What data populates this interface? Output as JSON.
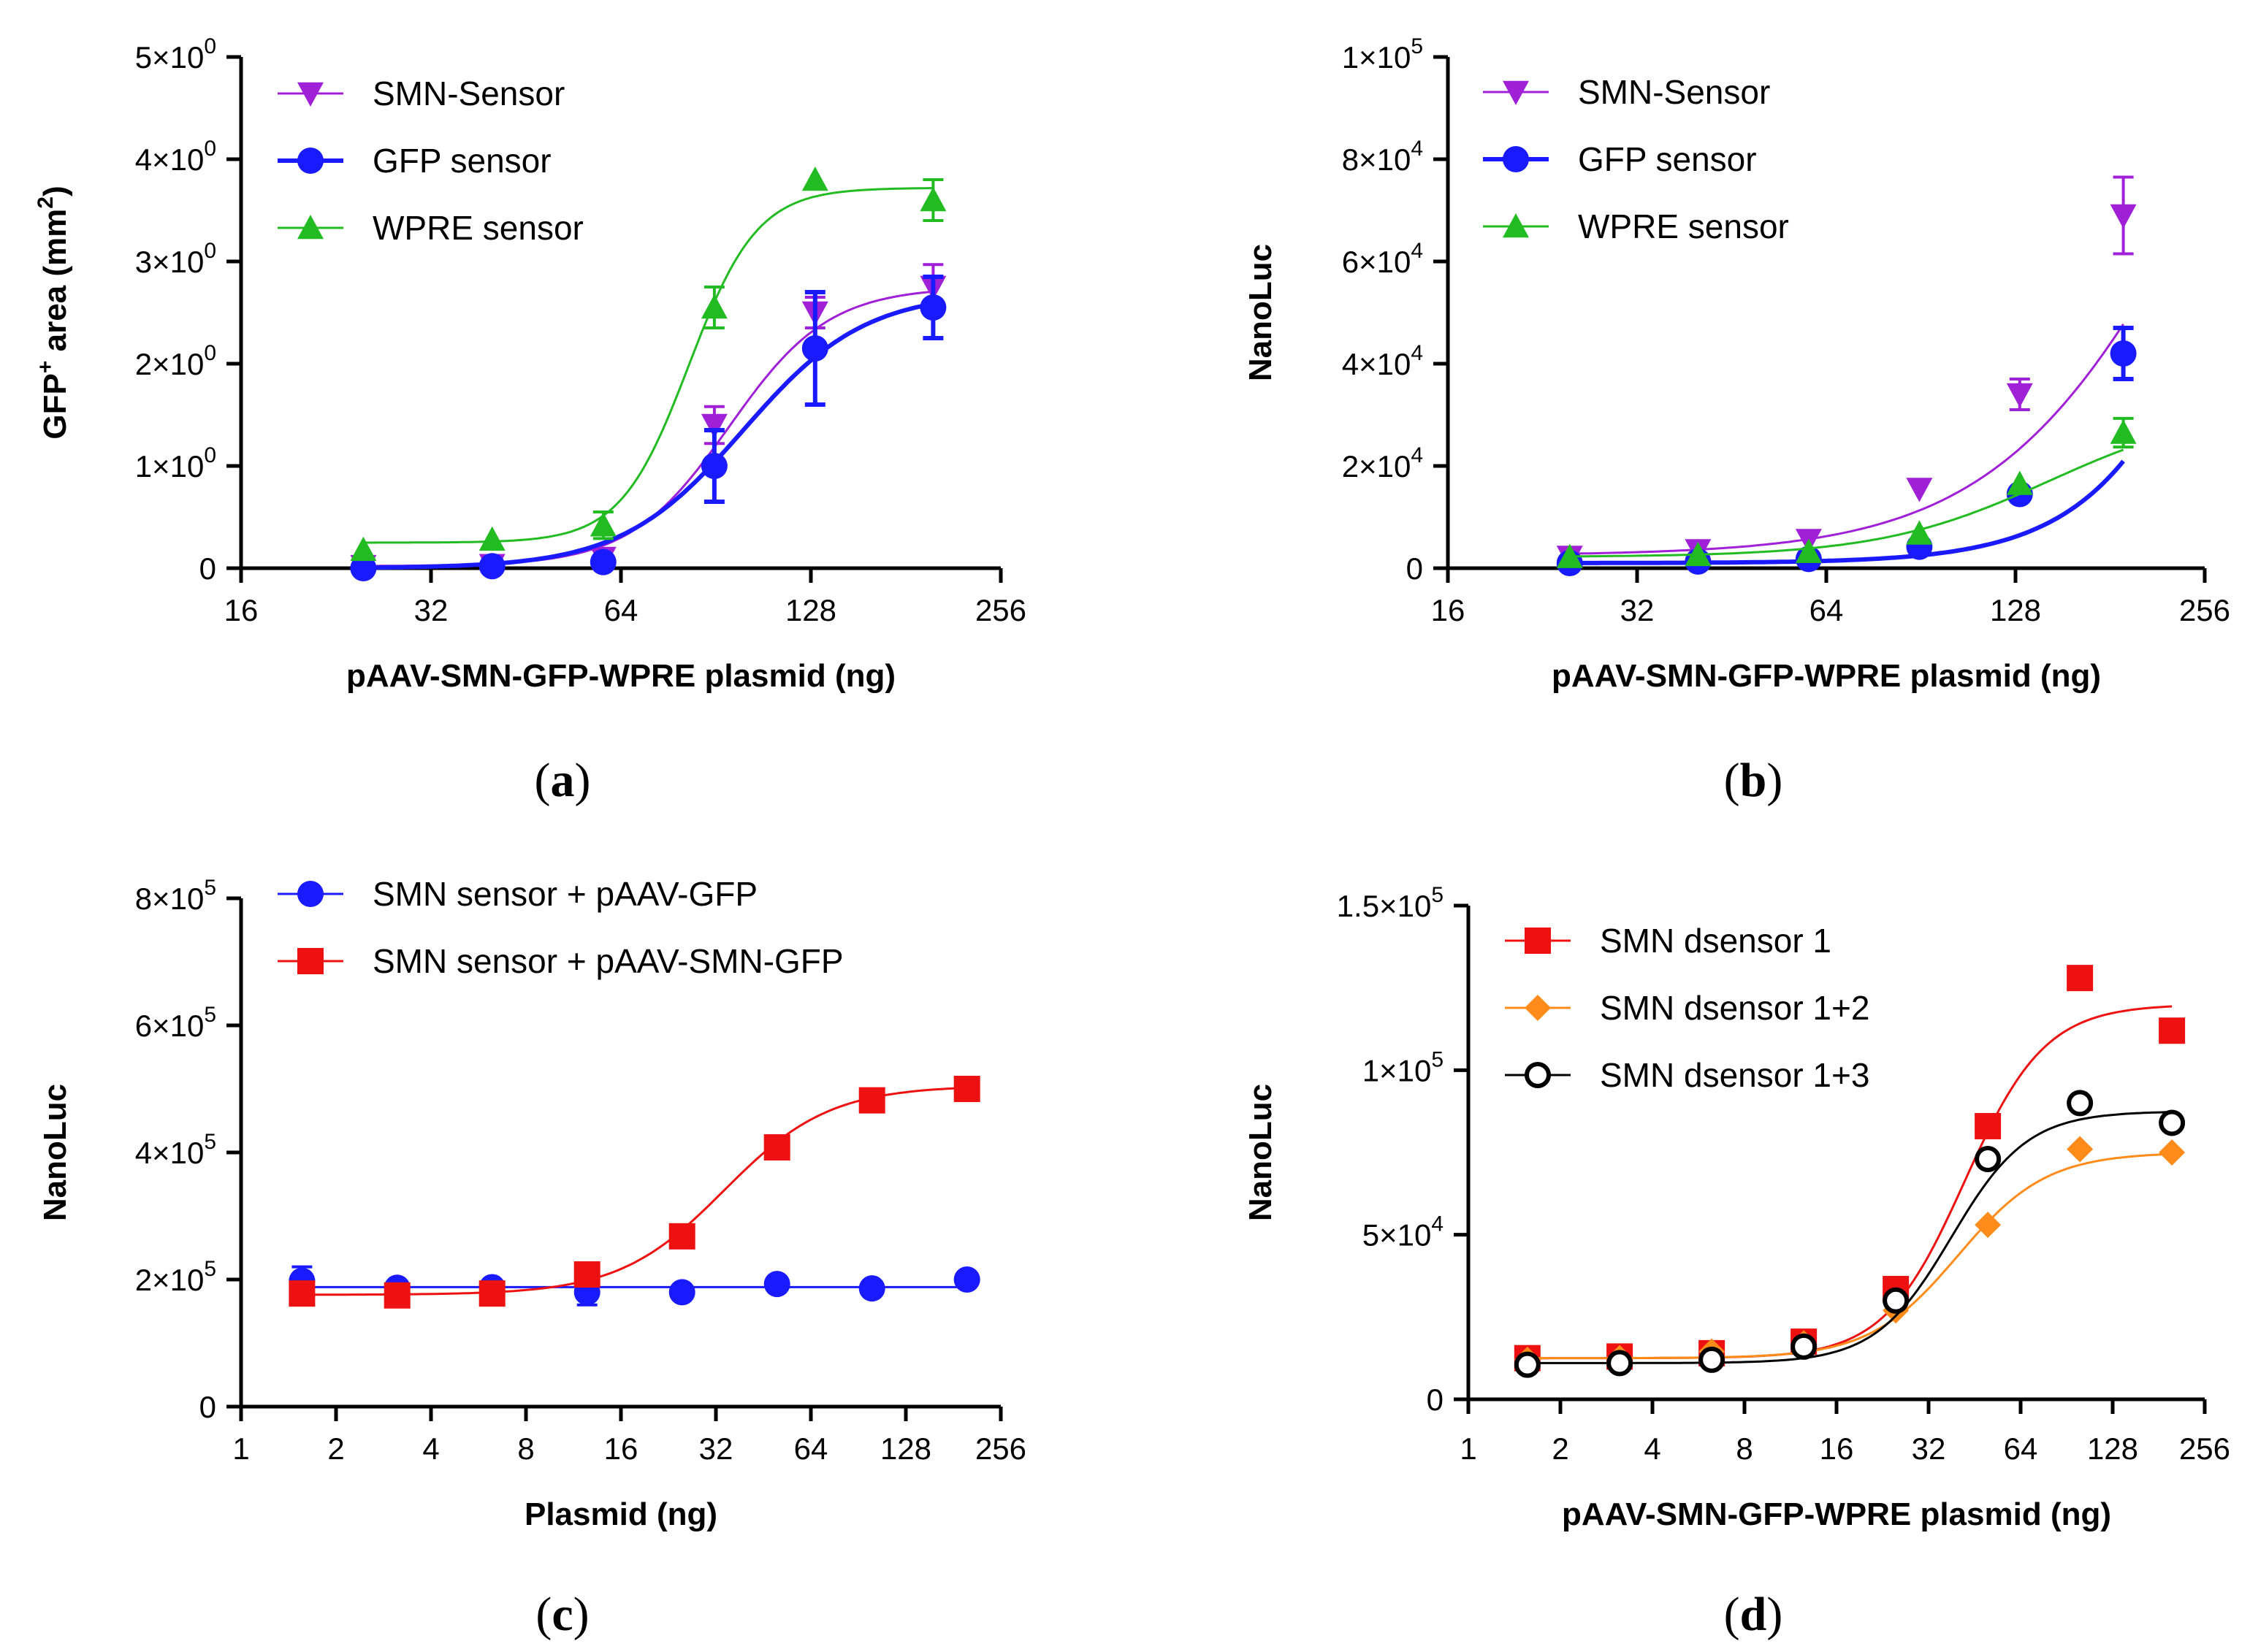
{
  "chart_data": [
    {
      "type": "scatter",
      "panel": "a",
      "xlabel": "pAAV-SMN-GFP-WPRE plasmid (ng)",
      "ylabel": {
        "main": "GFP",
        "sup1": "+",
        "mid": " area (mm",
        "sup2": "2",
        "end": ")"
      },
      "xscale": "log2",
      "xlim": [
        16,
        256
      ],
      "xticks": [
        {
          "value": 16,
          "label": "16"
        },
        {
          "value": 32,
          "label": "32"
        },
        {
          "value": 64,
          "label": "64"
        },
        {
          "value": 128,
          "label": "128"
        },
        {
          "value": 256,
          "label": "256"
        }
      ],
      "ylim": [
        0,
        5
      ],
      "yticks": [
        {
          "value": 0,
          "base": "0",
          "exp": ""
        },
        {
          "value": 1,
          "base": "1×10",
          "exp": "0"
        },
        {
          "value": 2,
          "base": "2×10",
          "exp": "0"
        },
        {
          "value": 3,
          "base": "3×10",
          "exp": "0"
        },
        {
          "value": 4,
          "base": "4×10",
          "exp": "0"
        },
        {
          "value": 5,
          "base": "5×10",
          "exp": "0"
        }
      ],
      "legend_position": "top-left",
      "series": [
        {
          "name": "SMN-Sensor",
          "color": "#a020d8",
          "marker": "triangle-down",
          "width": 3,
          "x": [
            25,
            40,
            60,
            90,
            130,
            200
          ],
          "y": [
            0.02,
            0.03,
            0.1,
            1.4,
            2.5,
            2.75
          ],
          "err": [
            0,
            0,
            0,
            0.18,
            0.15,
            0.22
          ],
          "fit": {
            "bottom": 0.02,
            "top": 2.75,
            "ec50": 95,
            "hill": 5.5
          }
        },
        {
          "name": "GFP sensor",
          "color": "#1a1aff",
          "marker": "circle",
          "width": 6,
          "x": [
            25,
            40,
            60,
            90,
            130,
            200
          ],
          "y": [
            0.0,
            0.02,
            0.06,
            1.0,
            2.15,
            2.55
          ],
          "err": [
            0,
            0,
            0,
            0.35,
            0.55,
            0.3
          ],
          "fit": {
            "bottom": 0.0,
            "top": 2.7,
            "ec50": 100,
            "hill": 4.5
          }
        },
        {
          "name": "WPRE sensor",
          "color": "#22bb22",
          "marker": "triangle-up",
          "width": 3,
          "x": [
            25,
            40,
            60,
            90,
            130,
            200
          ],
          "y": [
            0.18,
            0.28,
            0.42,
            2.55,
            3.8,
            3.6
          ],
          "err": [
            0,
            0,
            0.13,
            0.2,
            0,
            0.2
          ],
          "fit": {
            "bottom": 0.25,
            "top": 3.72,
            "ec50": 82,
            "hill": 8
          }
        }
      ]
    },
    {
      "type": "scatter",
      "panel": "b",
      "xlabel": "pAAV-SMN-GFP-WPRE plasmid (ng)",
      "ylabel": {
        "main": "NanoLuc"
      },
      "xscale": "log2",
      "xlim": [
        16,
        256
      ],
      "xticks": [
        {
          "value": 16,
          "label": "16"
        },
        {
          "value": 32,
          "label": "32"
        },
        {
          "value": 64,
          "label": "64"
        },
        {
          "value": 128,
          "label": "128"
        },
        {
          "value": 256,
          "label": "256"
        }
      ],
      "ylim": [
        0,
        100000
      ],
      "yticks": [
        {
          "value": 0,
          "base": "0",
          "exp": ""
        },
        {
          "value": 20000,
          "base": "2×10",
          "exp": "4"
        },
        {
          "value": 40000,
          "base": "4×10",
          "exp": "4"
        },
        {
          "value": 60000,
          "base": "6×10",
          "exp": "4"
        },
        {
          "value": 80000,
          "base": "8×10",
          "exp": "4"
        },
        {
          "value": 100000,
          "base": "1×10",
          "exp": "5"
        }
      ],
      "legend_position": "top-left",
      "series": [
        {
          "name": "SMN-Sensor",
          "color": "#a020d8",
          "marker": "triangle-down",
          "width": 3,
          "x": [
            25,
            40,
            60,
            90,
            130,
            190
          ],
          "y": [
            2200,
            3500,
            5500,
            15500,
            34000,
            69000
          ],
          "err": [
            0,
            0,
            0,
            0,
            3000,
            7500
          ],
          "fit": {
            "bottom": 2500,
            "top": 150000,
            "ec50": 260,
            "hill": 2.6
          }
        },
        {
          "name": "GFP sensor",
          "color": "#1a1aff",
          "marker": "circle",
          "width": 6,
          "x": [
            25,
            40,
            60,
            90,
            130,
            190
          ],
          "y": [
            1000,
            1300,
            1800,
            4200,
            14500,
            42000
          ],
          "err": [
            0,
            0,
            0,
            0,
            0,
            5000
          ],
          "fit": {
            "bottom": 1000,
            "top": 220000,
            "ec50": 360,
            "hill": 3.6
          }
        },
        {
          "name": "WPRE sensor",
          "color": "#22bb22",
          "marker": "triangle-up",
          "width": 3,
          "x": [
            25,
            40,
            60,
            90,
            130,
            190
          ],
          "y": [
            2200,
            2600,
            3200,
            6800,
            16500,
            26500
          ],
          "err": [
            0,
            0,
            0,
            0,
            0,
            2800
          ],
          "fit": {
            "bottom": 2200,
            "top": 32000,
            "ec50": 145,
            "hill": 3.2
          }
        }
      ]
    },
    {
      "type": "scatter",
      "panel": "c",
      "xlabel": "Plasmid (ng)",
      "ylabel": {
        "main": "NanoLuc"
      },
      "xscale": "log2",
      "xlim": [
        1,
        256
      ],
      "xticks": [
        {
          "value": 1,
          "label": "1"
        },
        {
          "value": 2,
          "label": "2"
        },
        {
          "value": 4,
          "label": "4"
        },
        {
          "value": 8,
          "label": "8"
        },
        {
          "value": 16,
          "label": "16"
        },
        {
          "value": 32,
          "label": "32"
        },
        {
          "value": 64,
          "label": "64"
        },
        {
          "value": 128,
          "label": "128"
        },
        {
          "value": 256,
          "label": "256"
        }
      ],
      "ylim": [
        0,
        800000
      ],
      "yticks": [
        {
          "value": 0,
          "base": "0",
          "exp": ""
        },
        {
          "value": 200000,
          "base": "2×10",
          "exp": "5"
        },
        {
          "value": 400000,
          "base": "4×10",
          "exp": "5"
        },
        {
          "value": 600000,
          "base": "6×10",
          "exp": "5"
        },
        {
          "value": 800000,
          "base": "8×10",
          "exp": "5"
        }
      ],
      "legend_position": "top",
      "series": [
        {
          "name": "SMN sensor + pAAV-GFP",
          "color": "#1a1aff",
          "marker": "circle",
          "width": 3,
          "x": [
            1.56,
            3.125,
            6.25,
            12.5,
            25,
            50,
            100,
            200
          ],
          "y": [
            198000,
            187000,
            188000,
            180000,
            180000,
            193000,
            186000,
            200000
          ],
          "err": [
            22000,
            0,
            0,
            20000,
            0,
            0,
            0,
            0
          ],
          "fit": {
            "bottom": 188000,
            "top": 188000,
            "ec50": 30,
            "hill": 1
          }
        },
        {
          "name": "SMN sensor + pAAV-SMN-GFP",
          "color": "#ee1111",
          "marker": "square",
          "width": 3,
          "x": [
            1.56,
            3.125,
            6.25,
            12.5,
            25,
            50,
            100,
            200
          ],
          "y": [
            178000,
            175000,
            178000,
            208000,
            268000,
            408000,
            482000,
            500000
          ],
          "err": [
            0,
            0,
            0,
            0,
            0,
            0,
            0,
            0
          ],
          "fit": {
            "bottom": 176000,
            "top": 505000,
            "ec50": 34,
            "hill": 2.6
          }
        }
      ]
    },
    {
      "type": "scatter",
      "panel": "d",
      "xlabel": "pAAV-SMN-GFP-WPRE plasmid (ng)",
      "ylabel": {
        "main": "NanoLuc"
      },
      "xscale": "log2",
      "xlim": [
        1,
        256
      ],
      "xticks": [
        {
          "value": 1,
          "label": "1"
        },
        {
          "value": 2,
          "label": "2"
        },
        {
          "value": 4,
          "label": "4"
        },
        {
          "value": 8,
          "label": "8"
        },
        {
          "value": 16,
          "label": "16"
        },
        {
          "value": 32,
          "label": "32"
        },
        {
          "value": 64,
          "label": "64"
        },
        {
          "value": 128,
          "label": "128"
        },
        {
          "value": 256,
          "label": "256"
        }
      ],
      "ylim": [
        0,
        150000
      ],
      "yticks": [
        {
          "value": 0,
          "base": "0",
          "exp": ""
        },
        {
          "value": 50000,
          "base": "5×10",
          "exp": "4"
        },
        {
          "value": 100000,
          "base": "1×10",
          "exp": "5"
        },
        {
          "value": 150000,
          "base": "1.5×10",
          "exp": "5"
        }
      ],
      "legend_position": "top",
      "series": [
        {
          "name": "SMN dsensor 1",
          "color": "#ee1111",
          "marker": "square",
          "width": 3,
          "x": [
            1.56,
            3.125,
            6.25,
            12.5,
            25,
            50,
            100,
            200
          ],
          "y": [
            12500,
            13000,
            14000,
            17500,
            33500,
            83000,
            128000,
            112000
          ],
          "err": [
            0,
            0,
            0,
            0,
            0,
            0,
            0,
            0
          ],
          "fit": {
            "bottom": 12500,
            "top": 120000,
            "ec50": 42,
            "hill": 3.3
          }
        },
        {
          "name": "SMN dsensor 1+2",
          "color": "#ff8c1a",
          "marker": "diamond",
          "width": 3,
          "x": [
            1.56,
            3.125,
            6.25,
            12.5,
            25,
            50,
            100,
            200
          ],
          "y": [
            12000,
            12500,
            14500,
            17000,
            27000,
            53000,
            76000,
            75000
          ],
          "err": [
            0,
            0,
            0,
            0,
            0,
            0,
            0,
            0
          ],
          "fit": {
            "bottom": 12500,
            "top": 75000,
            "ec50": 40,
            "hill": 3.0
          }
        },
        {
          "name": "SMN dsensor 1+3",
          "color": "#000000",
          "marker": "open-circle",
          "width": 3,
          "x": [
            1.56,
            3.125,
            6.25,
            12.5,
            25,
            50,
            100,
            200
          ],
          "y": [
            10500,
            11000,
            12000,
            16000,
            30000,
            73000,
            90000,
            84000
          ],
          "err": [
            0,
            0,
            0,
            0,
            0,
            0,
            0,
            0
          ],
          "fit": {
            "bottom": 11000,
            "top": 87500,
            "ec50": 38,
            "hill": 3.5
          }
        }
      ]
    }
  ],
  "panel_labels": {
    "a": {
      "open": "(",
      "letter": "a",
      "close": ")"
    },
    "b": {
      "open": "(",
      "letter": "b",
      "close": ")"
    },
    "c": {
      "open": "(",
      "letter": "c",
      "close": ")"
    },
    "d": {
      "open": "(",
      "letter": "d",
      "close": ")"
    }
  }
}
